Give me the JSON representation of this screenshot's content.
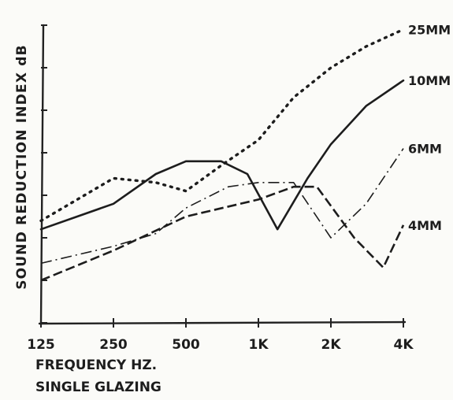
{
  "chart_data": {
    "type": "line",
    "ylabel": "SOUND REDUCTION INDEX dB",
    "xlabel": "FREQUENCY HZ.",
    "subtitle": "SINGLE GLAZING",
    "x_ticks": [
      "125",
      "250",
      "500",
      "1K",
      "2K",
      "4K"
    ],
    "series": [
      {
        "name": "25MM",
        "style": "dotted",
        "points": [
          [
            125,
            2.4
          ],
          [
            250,
            3.4
          ],
          [
            375,
            3.3
          ],
          [
            500,
            3.1
          ],
          [
            700,
            3.7
          ],
          [
            1000,
            4.3
          ],
          [
            1400,
            5.3
          ],
          [
            2000,
            6.0
          ],
          [
            2800,
            6.5
          ],
          [
            4000,
            6.9
          ]
        ]
      },
      {
        "name": "10MM",
        "style": "solid",
        "points": [
          [
            125,
            2.2
          ],
          [
            250,
            2.8
          ],
          [
            375,
            3.5
          ],
          [
            500,
            3.8
          ],
          [
            700,
            3.8
          ],
          [
            900,
            3.5
          ],
          [
            1200,
            2.2
          ],
          [
            1600,
            3.4
          ],
          [
            2000,
            4.2
          ],
          [
            2800,
            5.1
          ],
          [
            4000,
            5.7
          ]
        ]
      },
      {
        "name": "6MM",
        "style": "dash-dot",
        "points": [
          [
            125,
            1.4
          ],
          [
            250,
            1.8
          ],
          [
            375,
            2.1
          ],
          [
            500,
            2.7
          ],
          [
            750,
            3.2
          ],
          [
            1000,
            3.3
          ],
          [
            1400,
            3.3
          ],
          [
            2000,
            2.0
          ],
          [
            2800,
            2.8
          ],
          [
            4000,
            4.1
          ]
        ]
      },
      {
        "name": "4MM",
        "style": "dashed",
        "points": [
          [
            125,
            1.0
          ],
          [
            250,
            1.7
          ],
          [
            500,
            2.5
          ],
          [
            1000,
            2.9
          ],
          [
            1400,
            3.2
          ],
          [
            1750,
            3.2
          ],
          [
            2500,
            2.0
          ],
          [
            3300,
            1.3
          ],
          [
            4000,
            2.3
          ]
        ]
      }
    ],
    "grid": false
  }
}
